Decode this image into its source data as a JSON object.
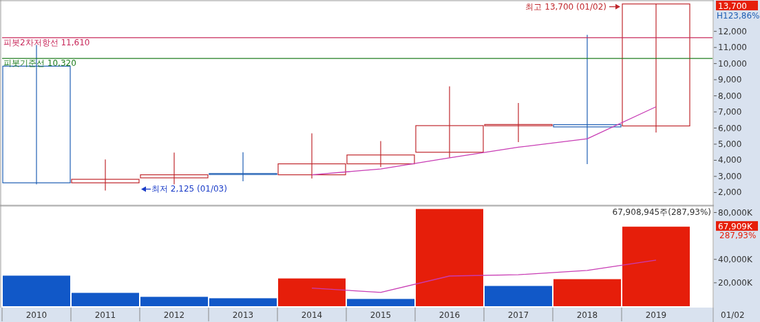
{
  "chart_data": [
    {
      "type": "candlestick",
      "categories": [
        "2010",
        "2011",
        "2012",
        "2013",
        "2014",
        "2015",
        "2016",
        "2017",
        "2018",
        "2019"
      ],
      "ohlc": [
        [
          9840,
          11160,
          2510,
          2600
        ],
        [
          2600,
          4050,
          2125,
          2820
        ],
        [
          2910,
          4480,
          2510,
          3100
        ],
        [
          3180,
          4500,
          2700,
          3150
        ],
        [
          3100,
          5670,
          2870,
          3780
        ],
        [
          3780,
          5190,
          3580,
          4330
        ],
        [
          4500,
          8590,
          4170,
          6150
        ],
        [
          6140,
          7560,
          5130,
          6220
        ],
        [
          6210,
          11780,
          3760,
          6070
        ],
        [
          6130,
          13700,
          5720,
          13700
        ]
      ],
      "colors": [
        "#1f5fb4",
        "#c0282d",
        "#c0282d",
        "#1f5fb4",
        "#c0282d",
        "#c0282d",
        "#c0282d",
        "#c0282d",
        "#1f5fb4",
        "#c0282d"
      ],
      "series": [
        {
          "type": "line",
          "color": "#c83cb4",
          "values": [
            null,
            null,
            null,
            null,
            3100,
            3460,
            4150,
            4810,
            5330,
            7320
          ]
        }
      ],
      "ylim": [
        1250,
        13860
      ],
      "yticks": [
        {
          "value": 2000,
          "label": "2,000"
        },
        {
          "value": 3000,
          "label": "3,000"
        },
        {
          "value": 4000,
          "label": "4,000"
        },
        {
          "value": 5000,
          "label": "5,000"
        },
        {
          "value": 6000,
          "label": "6,000"
        },
        {
          "value": 7000,
          "label": "7,000"
        },
        {
          "value": 8000,
          "label": "8,000"
        },
        {
          "value": 9000,
          "label": "9,000"
        },
        {
          "value": 10000,
          "label": "10,000"
        },
        {
          "value": 11000,
          "label": "11,000"
        },
        {
          "value": 12000,
          "label": "12,000"
        }
      ],
      "ref_lines": [
        {
          "axis": "y",
          "value": 11610,
          "label": "피봇2차저항선 11,610",
          "color": "#c8285a"
        },
        {
          "axis": "y",
          "value": 10320,
          "label": "피봇기준선 10,320",
          "color": "#1e7d1e"
        }
      ],
      "annotations": [
        "최고 13,700 (01/02)",
        "최저 2,125 (01/03)",
        "13,700",
        "H123,86%"
      ],
      "tick_labels": "y"
    },
    {
      "type": "bar",
      "categories": [
        "2010",
        "2011",
        "2012",
        "2013",
        "2014",
        "2015",
        "2016",
        "2017",
        "2018",
        "2019"
      ],
      "series": [
        {
          "type": "bar",
          "colors": [
            "#1158c8",
            "#1158c8",
            "#1158c8",
            "#1158c8",
            "#e61e0a",
            "#1158c8",
            "#e61e0a",
            "#1158c8",
            "#e61e0a",
            "#e61e0a"
          ],
          "values": [
            26100,
            11400,
            8000,
            6800,
            23700,
            6200,
            83000,
            17300,
            23100,
            67909
          ]
        },
        {
          "type": "line",
          "color": "#c83cb4",
          "values": [
            null,
            null,
            null,
            null,
            15500,
            11800,
            25800,
            26900,
            30600,
            39400
          ]
        }
      ],
      "ylim": [
        0,
        85000
      ],
      "yticks": [
        {
          "value": 20000,
          "label": "20,000K"
        },
        {
          "value": 40000,
          "label": "40,000K"
        },
        {
          "value": 80000,
          "label": "80,000K"
        }
      ],
      "annotations": [
        "67,908,945주(287,93%)",
        "67,909K",
        "287,93%",
        "01/02"
      ]
    }
  ]
}
